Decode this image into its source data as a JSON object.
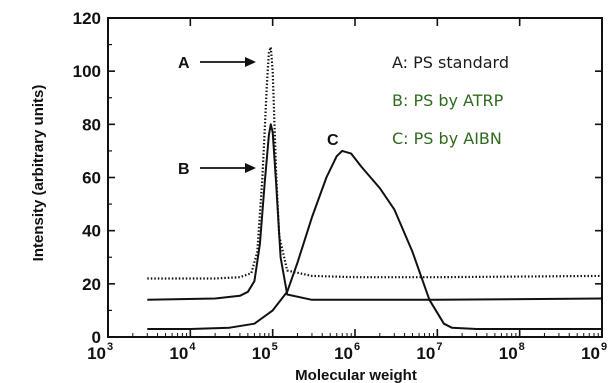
{
  "chart_data": {
    "type": "line",
    "title": "",
    "xlabel": "Molecular weight",
    "ylabel": "Intensity (arbitrary units)",
    "x_scale": "log",
    "xlim": [
      1000,
      1000000000
    ],
    "ylim": [
      0,
      120
    ],
    "grid": false,
    "x_ticks": [
      {
        "base": "10",
        "exp": "3",
        "value": 1000
      },
      {
        "base": "10",
        "exp": "4",
        "value": 10000
      },
      {
        "base": "10",
        "exp": "5",
        "value": 100000
      },
      {
        "base": "10",
        "exp": "6",
        "value": 1000000
      },
      {
        "base": "10",
        "exp": "7",
        "value": 10000000
      },
      {
        "base": "10",
        "exp": "8",
        "value": 100000000
      },
      {
        "base": "10",
        "exp": "9",
        "value": 1000000000
      }
    ],
    "y_ticks": [
      "0",
      "20",
      "40",
      "60",
      "80",
      "100",
      "120"
    ],
    "legend_position": "top-right",
    "legend": [
      {
        "text": "A: PS standard",
        "color": "#1c1c1c"
      },
      {
        "text": "B: PS by ATRP",
        "color": "#2f6b1f"
      },
      {
        "text": "C: PS by AIBN",
        "color": "#2f6b1f"
      }
    ],
    "curve_labels": [
      "A",
      "B",
      "C"
    ],
    "series": [
      {
        "id": "A",
        "style": "dotted",
        "color": "#111111",
        "x": [
          3000,
          20000,
          40000,
          55000,
          65000,
          75000,
          85000,
          90000,
          95000,
          100000,
          110000,
          120000,
          150000,
          300000,
          1000000,
          10000000,
          1000000000
        ],
        "y": [
          22,
          22,
          22.5,
          24,
          32,
          60,
          95,
          107,
          109,
          100,
          62,
          38,
          25,
          23,
          22.5,
          22.5,
          23
        ]
      },
      {
        "id": "B",
        "style": "solid",
        "color": "#111111",
        "x": [
          3000,
          20000,
          40000,
          50000,
          60000,
          70000,
          80000,
          90000,
          95000,
          100000,
          110000,
          125000,
          150000,
          300000,
          1000000,
          10000000,
          1000000000
        ],
        "y": [
          14,
          14.5,
          15.5,
          17,
          21,
          35,
          58,
          76,
          80,
          77,
          58,
          30,
          16,
          14,
          14,
          14,
          14.5
        ]
      },
      {
        "id": "C",
        "style": "solid",
        "color": "#111111",
        "x": [
          3000,
          10000,
          30000,
          60000,
          100000,
          150000,
          200000,
          300000,
          450000,
          600000,
          700000,
          900000,
          1200000,
          2000000,
          3000000,
          5000000,
          8000000,
          12000000,
          15000000,
          30000000,
          1000000000
        ],
        "y": [
          3,
          3,
          3.5,
          5,
          10,
          17,
          28,
          45,
          60,
          68,
          70,
          69,
          64,
          56,
          48,
          32,
          14,
          5,
          3.5,
          3,
          3
        ]
      }
    ]
  }
}
